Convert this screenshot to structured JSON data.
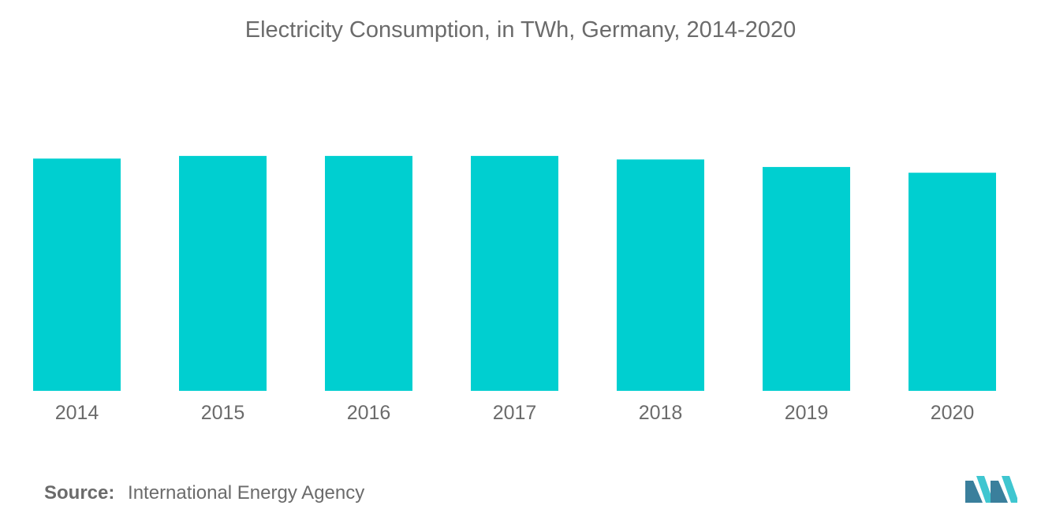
{
  "chart_data": {
    "type": "bar",
    "title": "Electricity Consumption, in TWh, Germany, 2014-2020",
    "categories": [
      "2014",
      "2015",
      "2016",
      "2017",
      "2018",
      "2019",
      "2020"
    ],
    "values": [
      525,
      531,
      531,
      531,
      523,
      506,
      493
    ],
    "xlabel": "",
    "ylabel": "",
    "ylim": [
      0,
      700
    ],
    "grid": false,
    "legend": "none",
    "bar_color": "#00cfd0"
  },
  "footer": {
    "source_label": "Source:",
    "source_text": "International Energy Agency"
  },
  "colors": {
    "text": "#6b6b6b",
    "logo_dark": "#3a7f9c",
    "logo_light": "#3fc6d0"
  }
}
